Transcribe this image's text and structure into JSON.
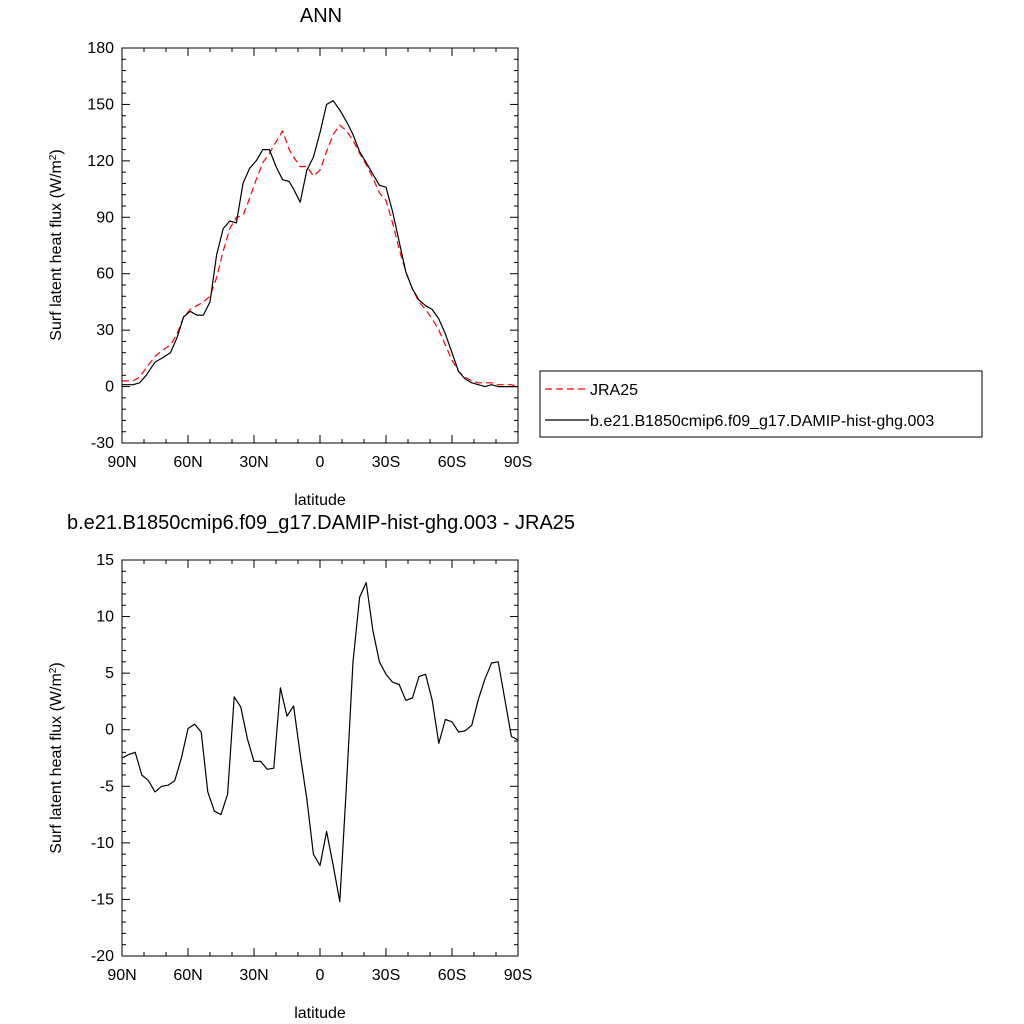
{
  "chart_data": [
    {
      "type": "line",
      "title": "ANN",
      "xlabel": "latitude",
      "ylabel": "Surf latent heat flux (W/m",
      "ylabel_sup": "2",
      "ylabel_close": ")",
      "xlim": [
        -90,
        90
      ],
      "ylim": [
        -30,
        180
      ],
      "xticks": [
        {
          "value": -90,
          "label": "90N"
        },
        {
          "value": -60,
          "label": "60N"
        },
        {
          "value": -30,
          "label": "30N"
        },
        {
          "value": 0,
          "label": "0"
        },
        {
          "value": 30,
          "label": "30S"
        },
        {
          "value": 60,
          "label": "60S"
        },
        {
          "value": 90,
          "label": "90S"
        }
      ],
      "yticks": [
        -30,
        0,
        30,
        60,
        90,
        120,
        150,
        180
      ],
      "grid": false,
      "legend_position": "right",
      "series": [
        {
          "name": "JRA25",
          "color": "#ff0000",
          "dash": "dashed",
          "x": [
            -90,
            -85,
            -82,
            -79,
            -75,
            -72,
            -68,
            -65,
            -62,
            -59,
            -56,
            -53,
            -50,
            -47,
            -44,
            -41,
            -38,
            -35,
            -32,
            -29,
            -26,
            -23,
            -20,
            -17,
            -14,
            -12,
            -9,
            -6,
            -3,
            0,
            3,
            6,
            9,
            12,
            15,
            18,
            21,
            24,
            27,
            30,
            33,
            36,
            39,
            42,
            45,
            48,
            51,
            54,
            57,
            60,
            63,
            66,
            69,
            72,
            75,
            78,
            81,
            84,
            87,
            90
          ],
          "y": [
            3,
            3,
            5,
            10,
            16,
            19,
            22,
            28,
            37,
            41,
            43,
            45,
            48,
            58,
            72,
            84,
            90,
            91,
            100,
            110,
            119,
            124,
            130,
            136,
            126,
            122,
            117,
            117,
            112,
            115,
            125,
            134,
            139,
            136,
            131,
            124,
            118,
            111,
            103,
            99,
            87,
            73,
            61,
            52,
            45,
            41,
            36,
            30,
            22,
            14,
            8,
            5,
            3,
            2,
            2,
            2,
            1,
            1,
            1,
            0
          ]
        },
        {
          "name": "b.e21.B1850cmip6.f09_g17.DAMIP-hist-ghg.003",
          "color": "#000000",
          "dash": "solid",
          "x": [
            -90,
            -85,
            -82,
            -79,
            -75,
            -72,
            -68,
            -65,
            -62,
            -59,
            -56,
            -53,
            -50,
            -47,
            -44,
            -41,
            -38,
            -35,
            -32,
            -29,
            -26,
            -23,
            -20,
            -17,
            -14,
            -12,
            -9,
            -6,
            -3,
            0,
            3,
            6,
            9,
            12,
            15,
            18,
            21,
            24,
            27,
            30,
            33,
            36,
            39,
            42,
            45,
            48,
            51,
            54,
            57,
            60,
            63,
            66,
            69,
            72,
            75,
            78,
            81,
            84,
            87,
            90
          ],
          "y": [
            1,
            1,
            2,
            6,
            13,
            15,
            18,
            26,
            37,
            40,
            38,
            38,
            45,
            70,
            84,
            88,
            87,
            108,
            116,
            120,
            126,
            126,
            117,
            110,
            109,
            105,
            98,
            115,
            122,
            135,
            150,
            152,
            147,
            141,
            134,
            125,
            119,
            113,
            107,
            106,
            93,
            77,
            61,
            52,
            46,
            43,
            41,
            36,
            28,
            18,
            8,
            4,
            2,
            1,
            0,
            1,
            0,
            0,
            0,
            0
          ]
        }
      ]
    },
    {
      "type": "line",
      "title": "b.e21.B1850cmip6.f09_g17.DAMIP-hist-ghg.003 - JRA25",
      "xlabel": "latitude",
      "ylabel": "Surf latent heat flux (W/m",
      "ylabel_sup": "2",
      "ylabel_close": ")",
      "xlim": [
        -90,
        90
      ],
      "ylim": [
        -20,
        15
      ],
      "xticks": [
        {
          "value": -90,
          "label": "90N"
        },
        {
          "value": -60,
          "label": "60N"
        },
        {
          "value": -30,
          "label": "30N"
        },
        {
          "value": 0,
          "label": "0"
        },
        {
          "value": 30,
          "label": "30S"
        },
        {
          "value": 60,
          "label": "60S"
        },
        {
          "value": 90,
          "label": "90S"
        }
      ],
      "yticks": [
        -20,
        -15,
        -10,
        -5,
        0,
        5,
        10,
        15
      ],
      "grid": false,
      "series": [
        {
          "color": "#000000",
          "dash": "solid",
          "x": [
            -90,
            -87,
            -84,
            -81,
            -78,
            -75,
            -72,
            -69,
            -66,
            -63,
            -60,
            -57,
            -54,
            -51,
            -48,
            -45,
            -42,
            -39,
            -36,
            -33,
            -30,
            -27,
            -24,
            -21,
            -18,
            -15,
            -12,
            -9,
            -6,
            -3,
            0,
            3,
            6,
            9,
            12,
            15,
            18,
            21,
            24,
            27,
            30,
            33,
            36,
            39,
            42,
            45,
            48,
            51,
            54,
            57,
            60,
            63,
            66,
            69,
            72,
            75,
            78,
            81,
            84,
            87,
            90
          ],
          "y": [
            -2.5,
            -2.2,
            -2,
            -4,
            -4.5,
            -5.5,
            -5,
            -4.9,
            -4.5,
            -2.5,
            0.1,
            0.5,
            -0.2,
            -5.5,
            -7.2,
            -7.5,
            -5.7,
            2.9,
            2.0,
            -0.8,
            -2.8,
            -2.8,
            -3.5,
            -3.4,
            3.7,
            1.2,
            2.1,
            -2.2,
            -6.1,
            -11,
            -12,
            -9,
            -12,
            -15.2,
            -5,
            6,
            11.7,
            13,
            8.8,
            6,
            4.9,
            4.2,
            4.0,
            2.6,
            2.8,
            4.7,
            4.9,
            2.6,
            -1.2,
            0.9,
            0.7,
            -0.2,
            -0.1,
            0.4,
            2.7,
            4.5,
            5.9,
            6,
            2.7,
            -0.6,
            -0.9
          ]
        }
      ]
    }
  ],
  "legend": {
    "entries": [
      {
        "label": "JRA25",
        "color": "#ff0000",
        "dash": "dashed"
      },
      {
        "label": "b.e21.B1850cmip6.f09_g17.DAMIP-hist-ghg.003",
        "color": "#000000",
        "dash": "solid"
      }
    ]
  }
}
